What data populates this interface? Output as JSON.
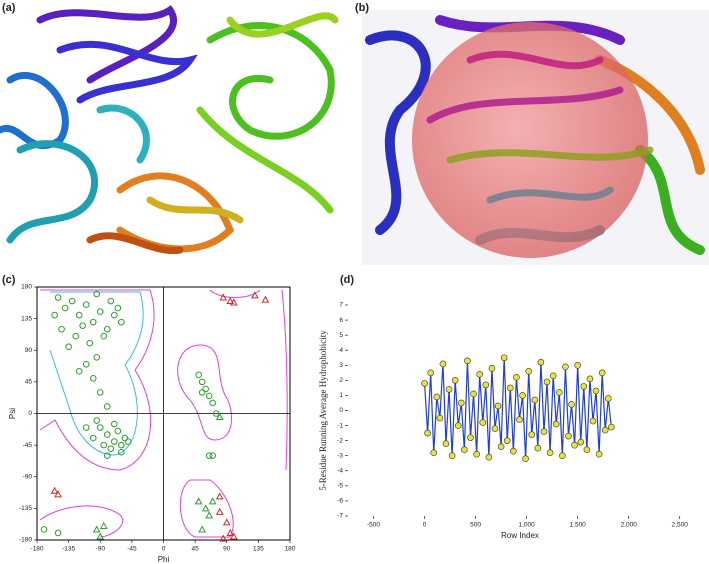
{
  "figure_labels": [
    "(a)",
    "(b)"
  ],
  "chart_data": [
    {
      "type": "scatter",
      "panel_label": "(c)",
      "xlabel": "Phi",
      "ylabel": "Psi",
      "xlim": [
        -180,
        180
      ],
      "ylim": [
        -180,
        180
      ],
      "xticks": [
        -180,
        -135,
        -90,
        -45,
        0,
        45,
        90,
        135,
        180
      ],
      "yticks": [
        -180,
        -135,
        -90,
        -45,
        0,
        45,
        90,
        135,
        180
      ],
      "series": [
        {
          "marker": "circle",
          "color": "#2ca02c",
          "x": [
            -150,
            -140,
            -130,
            -120,
            -110,
            -100,
            -90,
            -80,
            -70,
            -60,
            -145,
            -125,
            -105,
            -85,
            -65,
            -155,
            -95,
            -75,
            -115,
            -135,
            -110,
            -100,
            -90,
            -120,
            -80,
            -95,
            -90,
            -80,
            -70,
            -60,
            -65,
            -75,
            -55,
            -85,
            -100,
            -95,
            -70,
            -60,
            -80,
            -110,
            -50,
            50,
            55,
            60,
            65,
            70,
            55,
            75,
            65,
            70,
            -170,
            -150
          ],
          "y": [
            165,
            150,
            160,
            140,
            155,
            130,
            145,
            120,
            140,
            130,
            120,
            110,
            100,
            110,
            150,
            140,
            170,
            160,
            125,
            95,
            70,
            50,
            30,
            60,
            10,
            80,
            -20,
            -30,
            -40,
            -45,
            -25,
            -50,
            -35,
            -45,
            -35,
            -10,
            -15,
            -55,
            -60,
            -20,
            -40,
            55,
            45,
            35,
            25,
            15,
            30,
            0,
            -60,
            -60,
            -165,
            -170
          ]
        },
        {
          "marker": "triangle",
          "color": "#2ca02c",
          "x": [
            -95,
            -85,
            -90,
            50,
            60,
            65,
            55,
            70,
            80
          ],
          "y": [
            -165,
            -160,
            -175,
            -125,
            -135,
            -145,
            -165,
            -125,
            -5
          ]
        },
        {
          "marker": "triangle",
          "color": "#d62728",
          "x": [
            -155,
            -150,
            85,
            95,
            100,
            130,
            145,
            80,
            90,
            95,
            85,
            100,
            80
          ],
          "y": [
            -110,
            -115,
            165,
            160,
            158,
            168,
            162,
            -140,
            -155,
            -170,
            -178,
            -175,
            -118
          ]
        }
      ]
    },
    {
      "type": "line",
      "panel_label": "(d)",
      "xlabel": "Row Index",
      "ylabel": "5-Residue Running Average Hydrophobicity",
      "xlim": [
        -750,
        2620
      ],
      "ylim": [
        -7,
        7
      ],
      "xticks": [
        -500,
        0,
        500,
        {
          "value": 1000,
          "label": "1,000"
        },
        {
          "value": 1500,
          "label": "1,500"
        },
        {
          "value": 2000,
          "label": "2,000"
        },
        {
          "value": 2500,
          "label": "2,500"
        }
      ],
      "yticks": [
        -7,
        -6,
        -5,
        -4,
        -3,
        -2,
        -1,
        0,
        1,
        2,
        3,
        4,
        5,
        6,
        7
      ],
      "series": [
        {
          "line_color": "#1f3fd6",
          "marker_color": "#e8e23a",
          "x": [
            0,
            30,
            60,
            90,
            120,
            150,
            180,
            210,
            240,
            270,
            300,
            330,
            360,
            390,
            420,
            450,
            480,
            510,
            540,
            570,
            600,
            630,
            660,
            690,
            720,
            750,
            780,
            810,
            840,
            870,
            900,
            930,
            960,
            990,
            1020,
            1050,
            1080,
            1110,
            1140,
            1170,
            1200,
            1230,
            1260,
            1290,
            1320,
            1350,
            1380,
            1410,
            1440,
            1470,
            1500,
            1530,
            1560,
            1590,
            1620,
            1650,
            1680,
            1710,
            1740,
            1770,
            1800,
            1830
          ],
          "y": [
            1.8,
            -1.5,
            2.5,
            -2.8,
            0.9,
            -0.5,
            3.1,
            -2.2,
            1.4,
            -3.0,
            2.0,
            -1.0,
            0.5,
            -2.6,
            3.3,
            -1.8,
            1.1,
            -2.9,
            2.4,
            -0.8,
            1.7,
            -3.1,
            2.8,
            -1.2,
            0.3,
            -2.4,
            3.5,
            -2.0,
            1.5,
            -2.7,
            2.2,
            -0.6,
            1.0,
            -3.2,
            2.6,
            -1.6,
            0.7,
            -2.5,
            3.2,
            -1.4,
            1.9,
            -2.8,
            2.3,
            -0.9,
            1.2,
            -3.0,
            2.9,
            -1.7,
            0.4,
            -2.3,
            3.0,
            -2.1,
            1.6,
            -2.6,
            2.1,
            -0.7,
            1.3,
            -2.9,
            2.5,
            -1.3,
            0.8,
            -1.1
          ]
        }
      ]
    }
  ]
}
